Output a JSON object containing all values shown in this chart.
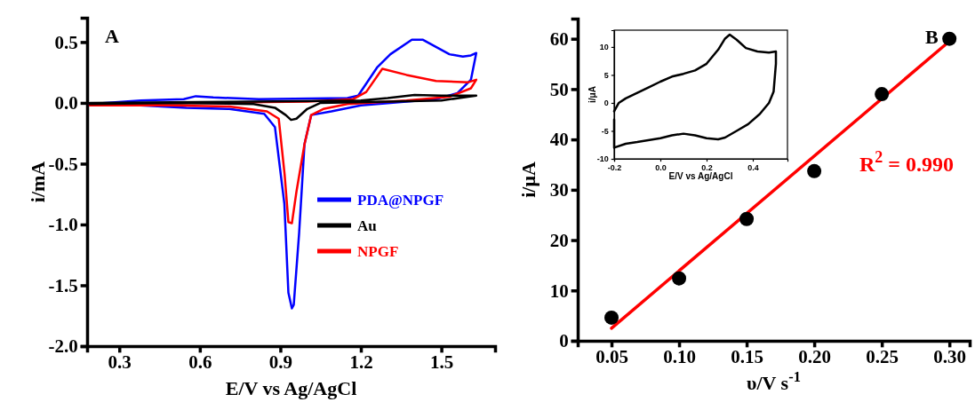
{
  "chart_data": [
    {
      "type": "line",
      "xlabel": "E/V vs Ag/AgCl",
      "ylabel": "i/mA",
      "annotations": [
        "A"
      ],
      "xlim": [
        0.18,
        1.7
      ],
      "xticks": [
        0.3,
        0.6,
        0.9,
        1.2,
        1.5
      ],
      "ylim": [
        -2.0,
        0.7
      ],
      "yticks": [
        {
          "value": -2.0,
          "label": "-2.0"
        },
        -1.5,
        {
          "value": -1.0,
          "label": "-1.0"
        },
        -0.5,
        {
          "value": 0.0,
          "label": "0.0"
        },
        0.5
      ],
      "legend": "right",
      "grid": false,
      "series": [
        {
          "name": "PDA@NPGF",
          "color": "#0000ff",
          "x": [
            0.19,
            0.38,
            0.54,
            0.585,
            0.65,
            0.82,
            1.15,
            1.19,
            1.26,
            1.31,
            1.39,
            1.43,
            1.53,
            1.58,
            1.61,
            1.63,
            1.61,
            1.56,
            1.48,
            1.2,
            1.09,
            1.015,
            0.99,
            0.97,
            0.95,
            0.943,
            0.93,
            0.915,
            0.88,
            0.84,
            0.71,
            0.55,
            0.38,
            0.19
          ],
          "values": [
            -0.01,
            0.02,
            0.03,
            0.055,
            0.045,
            0.03,
            0.04,
            0.06,
            0.29,
            0.4,
            0.52,
            0.52,
            0.4,
            0.38,
            0.39,
            0.41,
            0.19,
            0.08,
            0.03,
            -0.02,
            -0.07,
            -0.1,
            -0.34,
            -1.07,
            -1.66,
            -1.69,
            -1.56,
            -0.83,
            -0.2,
            -0.09,
            -0.05,
            -0.04,
            -0.02,
            -0.02
          ]
        },
        {
          "name": "Au",
          "color": "#000000",
          "x": [
            0.19,
            0.8,
            1.2,
            1.3,
            1.4,
            1.5,
            1.6,
            1.63,
            1.6,
            1.5,
            1.3,
            1.05,
            1.0,
            0.96,
            0.94,
            0.92,
            0.88,
            0.8,
            0.5,
            0.19
          ],
          "values": [
            0.0,
            0.01,
            0.02,
            0.04,
            0.065,
            0.06,
            0.06,
            0.06,
            0.05,
            0.02,
            0.01,
            0.0,
            -0.05,
            -0.13,
            -0.14,
            -0.1,
            -0.04,
            -0.01,
            0.0,
            -0.01
          ]
        },
        {
          "name": "NPGF",
          "color": "#ff0000",
          "x": [
            0.19,
            0.6,
            1.0,
            1.17,
            1.22,
            1.28,
            1.37,
            1.48,
            1.6,
            1.63,
            1.61,
            1.53,
            1.37,
            1.15,
            1.06,
            1.015,
            0.99,
            0.96,
            0.943,
            0.93,
            0.916,
            0.894,
            0.85,
            0.71,
            0.49,
            0.19
          ],
          "values": [
            -0.01,
            0.0,
            0.01,
            0.03,
            0.09,
            0.28,
            0.23,
            0.18,
            0.17,
            0.19,
            0.12,
            0.05,
            0.02,
            -0.01,
            -0.05,
            -0.1,
            -0.34,
            -0.73,
            -0.99,
            -0.98,
            -0.59,
            -0.13,
            -0.07,
            -0.03,
            -0.02,
            -0.02
          ]
        }
      ]
    },
    {
      "type": "scatter",
      "xlabel": "υ/V s$^{-1}$",
      "ylabel": "i/μA",
      "annotations": [
        "B",
        "R$^{2}$ = 0.990"
      ],
      "xlim": [
        0.025,
        0.315
      ],
      "xticks": [
        {
          "value": 0.05,
          "label": "0.05"
        },
        {
          "value": 0.1,
          "label": "0.10"
        },
        {
          "value": 0.15,
          "label": "0.15"
        },
        {
          "value": 0.2,
          "label": "0.20"
        },
        {
          "value": 0.25,
          "label": "0.25"
        },
        {
          "value": 0.3,
          "label": "0.30"
        }
      ],
      "ylim": [
        0,
        64
      ],
      "yticks": [
        0,
        10,
        20,
        30,
        40,
        50,
        60
      ],
      "grid": false,
      "series": [
        {
          "color": "#000000",
          "marker": "circle",
          "x": [
            0.05,
            0.1,
            0.15,
            0.2,
            0.25,
            0.3
          ],
          "values": [
            4.6,
            12.4,
            24.2,
            33.7,
            49,
            60
          ]
        },
        {
          "type": "line",
          "color": "#ff0000",
          "x": [
            0.05,
            0.3
          ],
          "values": [
            2.5,
            59.5
          ]
        }
      ]
    },
    {
      "type": "line",
      "xlabel": "E/V vs Ag/AgCl",
      "ylabel": "i/μA",
      "xlim": [
        -0.2,
        0.55
      ],
      "xticks": [
        -0.2,
        {
          "value": 0.0,
          "label": "0.0"
        },
        0.2,
        0.4
      ],
      "ylim": [
        -10,
        13
      ],
      "yticks": [
        -10,
        -5,
        0,
        5,
        10
      ],
      "grid": false,
      "series": [
        {
          "color": "#000000",
          "x": [
            -0.2,
            -0.18,
            -0.15,
            -0.1,
            -0.05,
            0,
            0.05,
            0.1,
            0.15,
            0.2,
            0.25,
            0.28,
            0.3,
            0.33,
            0.37,
            0.42,
            0.47,
            0.5,
            0.5,
            0.49,
            0.47,
            0.43,
            0.38,
            0.33,
            0.28,
            0.25,
            0.2,
            0.15,
            0.1,
            0.05,
            0,
            -0.1,
            -0.15,
            -0.2,
            -0.2
          ],
          "values": [
            -1.5,
            0,
            0.8,
            1.8,
            2.8,
            3.8,
            4.7,
            5.2,
            5.8,
            7,
            9.5,
            11.5,
            12.2,
            11.3,
            9.8,
            9.2,
            9.0,
            9.2,
            7,
            2,
            0,
            -2,
            -3.8,
            -5,
            -6.2,
            -6.5,
            -6.3,
            -5.8,
            -5.5,
            -5.8,
            -6.3,
            -7,
            -7.3,
            -8,
            -3
          ]
        }
      ]
    }
  ]
}
